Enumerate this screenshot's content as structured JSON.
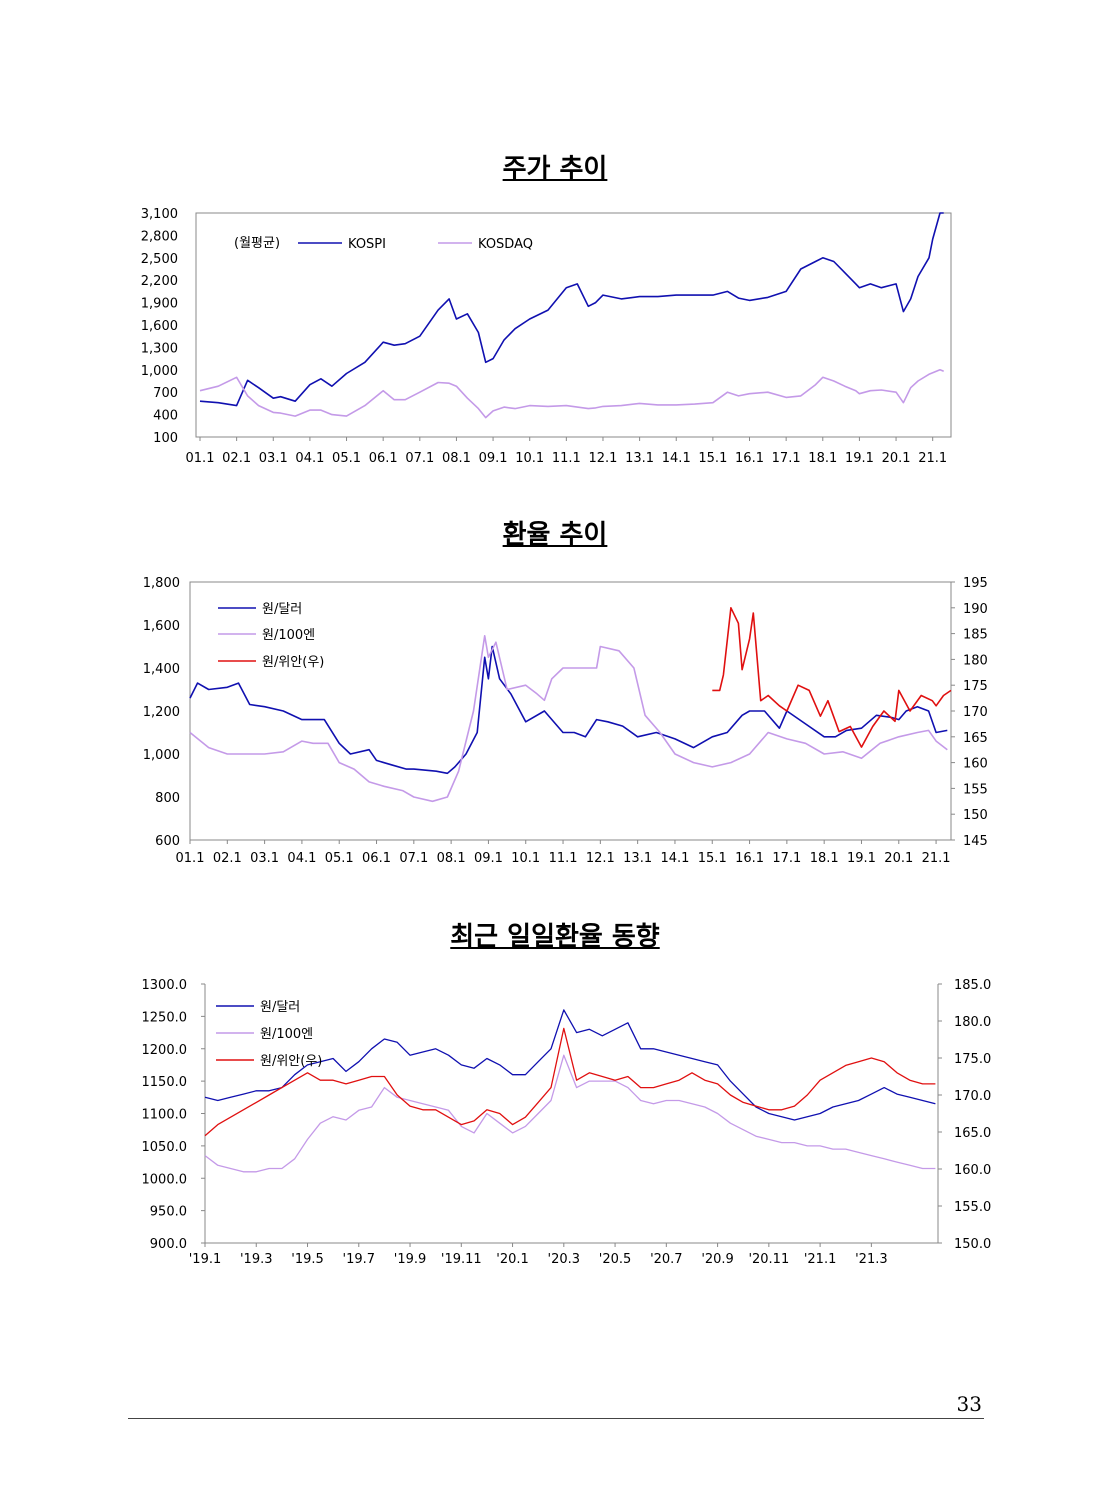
{
  "titles": {
    "stock": "주가 추이",
    "fx": "환율 추이",
    "daily": "최근 일일환율 동향"
  },
  "page_number": "33",
  "colors": {
    "blue": "#1010b0",
    "lavender": "#c49ae8",
    "red": "#e01010"
  },
  "chart_data": [
    {
      "type": "line",
      "title": "주가 추이",
      "note": "(월평균)",
      "x_ticks": [
        "01.1",
        "02.1",
        "03.1",
        "04.1",
        "05.1",
        "06.1",
        "07.1",
        "08.1",
        "09.1",
        "10.1",
        "11.1",
        "12.1",
        "13.1",
        "14.1",
        "15.1",
        "16.1",
        "17.1",
        "18.1",
        "19.1",
        "20.1",
        "21.1"
      ],
      "y_ticks": [
        "3,100",
        "2,800",
        "2,500",
        "2,200",
        "1,900",
        "1,600",
        "1,300",
        "1,000",
        "700",
        "400",
        "100"
      ],
      "ylim": [
        100,
        3100
      ],
      "x": [
        2001.0,
        2001.5,
        2002.0,
        2002.3,
        2002.6,
        2003.0,
        2003.2,
        2003.6,
        2004.0,
        2004.3,
        2004.6,
        2005.0,
        2005.5,
        2006.0,
        2006.3,
        2006.6,
        2007.0,
        2007.5,
        2007.8,
        2008.0,
        2008.3,
        2008.6,
        2008.8,
        2009.0,
        2009.3,
        2009.6,
        2010.0,
        2010.5,
        2011.0,
        2011.3,
        2011.6,
        2011.8,
        2012.0,
        2012.5,
        2013.0,
        2013.5,
        2014.0,
        2014.5,
        2015.0,
        2015.4,
        2015.7,
        2016.0,
        2016.5,
        2017.0,
        2017.4,
        2017.8,
        2018.0,
        2018.3,
        2018.6,
        2018.9,
        2019.0,
        2019.3,
        2019.6,
        2020.0,
        2020.2,
        2020.4,
        2020.6,
        2020.9,
        2021.0,
        2021.2,
        2021.3
      ],
      "series": [
        {
          "name": "KOSPI",
          "color": "#1010b0",
          "values": [
            580,
            560,
            520,
            860,
            760,
            620,
            640,
            580,
            800,
            880,
            780,
            950,
            1100,
            1370,
            1330,
            1350,
            1450,
            1800,
            1950,
            1680,
            1750,
            1500,
            1100,
            1150,
            1400,
            1550,
            1680,
            1800,
            2100,
            2150,
            1850,
            1900,
            2000,
            1950,
            1980,
            1980,
            2000,
            2000,
            2000,
            2050,
            1960,
            1930,
            1970,
            2050,
            2350,
            2450,
            2500,
            2450,
            2300,
            2150,
            2100,
            2150,
            2100,
            2150,
            1780,
            1950,
            2250,
            2500,
            2750,
            3100,
            3100
          ]
        },
        {
          "name": "KOSDAQ",
          "color": "#c49ae8",
          "values": [
            720,
            780,
            900,
            650,
            520,
            430,
            420,
            380,
            460,
            460,
            400,
            380,
            520,
            720,
            600,
            600,
            700,
            830,
            820,
            780,
            620,
            480,
            360,
            450,
            500,
            480,
            520,
            510,
            520,
            500,
            480,
            490,
            510,
            520,
            550,
            530,
            530,
            540,
            560,
            700,
            650,
            680,
            700,
            630,
            650,
            800,
            900,
            850,
            780,
            720,
            680,
            720,
            730,
            700,
            560,
            760,
            850,
            940,
            960,
            1000,
            980
          ]
        }
      ]
    },
    {
      "type": "line",
      "title": "환율 추이",
      "x_ticks": [
        "01.1",
        "02.1",
        "03.1",
        "04.1",
        "05.1",
        "06.1",
        "07.1",
        "08.1",
        "09.1",
        "10.1",
        "11.1",
        "12.1",
        "13.1",
        "14.1",
        "15.1",
        "16.1",
        "17.1",
        "18.1",
        "19.1",
        "20.1",
        "21.1"
      ],
      "y_ticks_left": [
        "1,800",
        "1,600",
        "1,400",
        "1,200",
        "1,000",
        "800",
        "600"
      ],
      "y_ticks_right": [
        "195",
        "190",
        "185",
        "180",
        "175",
        "170",
        "165",
        "160",
        "155",
        "150",
        "145"
      ],
      "ylim_left": [
        600,
        1800
      ],
      "ylim_right": [
        145,
        195
      ],
      "series": [
        {
          "name": "원/달러",
          "color": "#1010b0",
          "axis": "left",
          "x": [
            2001.0,
            2001.2,
            2001.5,
            2002.0,
            2002.3,
            2002.6,
            2003.0,
            2003.5,
            2004.0,
            2004.6,
            2005.0,
            2005.3,
            2005.8,
            2006.0,
            2006.4,
            2006.8,
            2007.0,
            2007.6,
            2007.9,
            2008.1,
            2008.4,
            2008.7,
            2008.9,
            2009.0,
            2009.1,
            2009.3,
            2009.6,
            2010.0,
            2010.5,
            2011.0,
            2011.3,
            2011.6,
            2011.9,
            2012.2,
            2012.6,
            2013.0,
            2013.5,
            2014.0,
            2014.5,
            2015.0,
            2015.4,
            2015.8,
            2016.0,
            2016.4,
            2016.8,
            2017.0,
            2017.5,
            2018.0,
            2018.3,
            2018.6,
            2019.0,
            2019.4,
            2019.8,
            2020.0,
            2020.2,
            2020.5,
            2020.8,
            2021.0,
            2021.3
          ],
          "values": [
            1260,
            1330,
            1300,
            1310,
            1330,
            1230,
            1220,
            1200,
            1160,
            1160,
            1050,
            1000,
            1020,
            970,
            950,
            930,
            930,
            920,
            910,
            940,
            1000,
            1100,
            1450,
            1350,
            1500,
            1350,
            1280,
            1150,
            1200,
            1100,
            1100,
            1080,
            1160,
            1150,
            1130,
            1080,
            1100,
            1070,
            1030,
            1080,
            1100,
            1180,
            1200,
            1200,
            1120,
            1200,
            1140,
            1080,
            1080,
            1110,
            1120,
            1180,
            1170,
            1160,
            1200,
            1220,
            1200,
            1100,
            1110
          ]
        },
        {
          "name": "원/100엔",
          "color": "#c49ae8",
          "axis": "left",
          "x": [
            2001.0,
            2001.5,
            2002.0,
            2002.5,
            2003.0,
            2003.5,
            2004.0,
            2004.3,
            2004.7,
            2005.0,
            2005.4,
            2005.8,
            2006.2,
            2006.7,
            2007.0,
            2007.5,
            2007.9,
            2008.2,
            2008.6,
            2008.9,
            2009.0,
            2009.2,
            2009.5,
            2010.0,
            2010.3,
            2010.5,
            2010.7,
            2011.0,
            2011.5,
            2011.9,
            2012.0,
            2012.5,
            2012.9,
            2013.2,
            2013.6,
            2014.0,
            2014.5,
            2015.0,
            2015.5,
            2016.0,
            2016.5,
            2017.0,
            2017.5,
            2018.0,
            2018.5,
            2019.0,
            2019.5,
            2020.0,
            2020.5,
            2020.8,
            2021.0,
            2021.3
          ],
          "values": [
            1100,
            1030,
            1000,
            1000,
            1000,
            1010,
            1060,
            1050,
            1050,
            960,
            930,
            870,
            850,
            830,
            800,
            780,
            800,
            920,
            1200,
            1550,
            1450,
            1520,
            1300,
            1320,
            1280,
            1250,
            1350,
            1400,
            1400,
            1400,
            1500,
            1480,
            1400,
            1180,
            1100,
            1000,
            960,
            940,
            960,
            1000,
            1100,
            1070,
            1050,
            1000,
            1010,
            980,
            1050,
            1080,
            1100,
            1110,
            1060,
            1020
          ]
        },
        {
          "name": "원/위안(우)",
          "color": "#e01010",
          "axis": "right",
          "x": [
            2015.0,
            2015.2,
            2015.3,
            2015.5,
            2015.7,
            2015.8,
            2016.0,
            2016.1,
            2016.3,
            2016.5,
            2016.8,
            2017.0,
            2017.3,
            2017.6,
            2017.9,
            2018.1,
            2018.4,
            2018.7,
            2019.0,
            2019.3,
            2019.6,
            2019.9,
            2020.0,
            2020.3,
            2020.6,
            2020.9,
            2021.0,
            2021.2,
            2021.4
          ],
          "values": [
            174,
            174,
            177,
            190,
            187,
            178,
            184,
            189,
            172,
            173,
            171,
            170,
            175,
            174,
            169,
            172,
            166,
            167,
            163,
            167,
            170,
            168,
            174,
            170,
            173,
            172,
            171,
            173,
            174
          ]
        }
      ]
    },
    {
      "type": "line",
      "title": "최근 일일환율 동향",
      "x_ticks": [
        "'19.1",
        "'19.3",
        "'19.5",
        "'19.7",
        "'19.9",
        "'19.11",
        "'20.1",
        "'20.3",
        "'20.5",
        "'20.7",
        "'20.9",
        "'20.11",
        "'21.1",
        "'21.3"
      ],
      "y_ticks_left": [
        "1300.0",
        "1250.0",
        "1200.0",
        "1150.0",
        "1100.0",
        "1050.0",
        "1000.0",
        "950.0",
        "900.0"
      ],
      "y_ticks_right": [
        "185.0",
        "180.0",
        "175.0",
        "170.0",
        "165.0",
        "160.0",
        "155.0",
        "150.0"
      ],
      "ylim_left": [
        900,
        1300
      ],
      "ylim_right": [
        150,
        185
      ],
      "series": [
        {
          "name": "원/달러",
          "color": "#1010b0",
          "axis": "left",
          "x": [
            0,
            0.5,
            1,
            1.5,
            2,
            2.5,
            3,
            3.5,
            4,
            4.5,
            5,
            5.5,
            6,
            6.5,
            7,
            7.5,
            8,
            8.5,
            9,
            9.5,
            10,
            10.5,
            11,
            11.5,
            12,
            12.5,
            13,
            13.5,
            14,
            14.5,
            15,
            15.5,
            16,
            16.5,
            17,
            17.5,
            18,
            18.5,
            19,
            19.5,
            20,
            20.5,
            21,
            21.5,
            22,
            22.5,
            23,
            23.5,
            24,
            24.5,
            25,
            25.5,
            26,
            26.5,
            27,
            27.5,
            28,
            28.5
          ],
          "values": [
            1125,
            1120,
            1125,
            1130,
            1135,
            1135,
            1140,
            1160,
            1175,
            1180,
            1185,
            1165,
            1180,
            1200,
            1215,
            1210,
            1190,
            1195,
            1200,
            1190,
            1175,
            1170,
            1185,
            1175,
            1160,
            1160,
            1180,
            1200,
            1260,
            1225,
            1230,
            1220,
            1230,
            1240,
            1200,
            1200,
            1195,
            1190,
            1185,
            1180,
            1175,
            1150,
            1130,
            1110,
            1100,
            1095,
            1090,
            1095,
            1100,
            1110,
            1115,
            1120,
            1130,
            1140,
            1130,
            1125,
            1120,
            1115
          ]
        },
        {
          "name": "원/100엔",
          "color": "#c49ae8",
          "axis": "left",
          "x": [
            0,
            0.5,
            1,
            1.5,
            2,
            2.5,
            3,
            3.5,
            4,
            4.5,
            5,
            5.5,
            6,
            6.5,
            7,
            7.5,
            8,
            8.5,
            9,
            9.5,
            10,
            10.5,
            11,
            11.5,
            12,
            12.5,
            13,
            13.5,
            14,
            14.5,
            15,
            15.5,
            16,
            16.5,
            17,
            17.5,
            18,
            18.5,
            19,
            19.5,
            20,
            20.5,
            21,
            21.5,
            22,
            22.5,
            23,
            23.5,
            24,
            24.5,
            25,
            25.5,
            26,
            26.5,
            27,
            27.5,
            28,
            28.5
          ],
          "values": [
            1035,
            1020,
            1015,
            1010,
            1010,
            1015,
            1015,
            1030,
            1060,
            1085,
            1095,
            1090,
            1105,
            1110,
            1140,
            1125,
            1120,
            1115,
            1110,
            1105,
            1080,
            1070,
            1100,
            1085,
            1070,
            1080,
            1100,
            1120,
            1190,
            1140,
            1150,
            1150,
            1150,
            1140,
            1120,
            1115,
            1120,
            1120,
            1115,
            1110,
            1100,
            1085,
            1075,
            1065,
            1060,
            1055,
            1055,
            1050,
            1050,
            1045,
            1045,
            1040,
            1035,
            1030,
            1025,
            1020,
            1015,
            1015
          ]
        },
        {
          "name": "원/위안(우)",
          "color": "#e01010",
          "axis": "right",
          "x": [
            0,
            0.5,
            1,
            1.5,
            2,
            2.5,
            3,
            3.5,
            4,
            4.5,
            5,
            5.5,
            6,
            6.5,
            7,
            7.5,
            8,
            8.5,
            9,
            9.5,
            10,
            10.5,
            11,
            11.5,
            12,
            12.5,
            13,
            13.5,
            14,
            14.5,
            15,
            15.5,
            16,
            16.5,
            17,
            17.5,
            18,
            18.5,
            19,
            19.5,
            20,
            20.5,
            21,
            21.5,
            22,
            22.5,
            23,
            23.5,
            24,
            24.5,
            25,
            25.5,
            26,
            26.5,
            27,
            27.5,
            28,
            28.5
          ],
          "values": [
            164.5,
            166,
            167,
            168,
            169,
            170,
            171,
            172,
            173,
            172,
            172,
            171.5,
            172,
            172.5,
            172.5,
            170,
            168.5,
            168,
            168,
            167,
            166,
            166.5,
            168,
            167.5,
            166,
            167,
            169,
            171,
            179,
            172,
            173,
            172.5,
            172,
            172.5,
            171,
            171,
            171.5,
            172,
            173,
            172,
            171.5,
            170,
            169,
            168.5,
            168,
            168,
            168.5,
            170,
            172,
            173,
            174,
            174.5,
            175,
            174.5,
            173,
            172,
            171.5,
            171.5
          ]
        }
      ]
    }
  ]
}
